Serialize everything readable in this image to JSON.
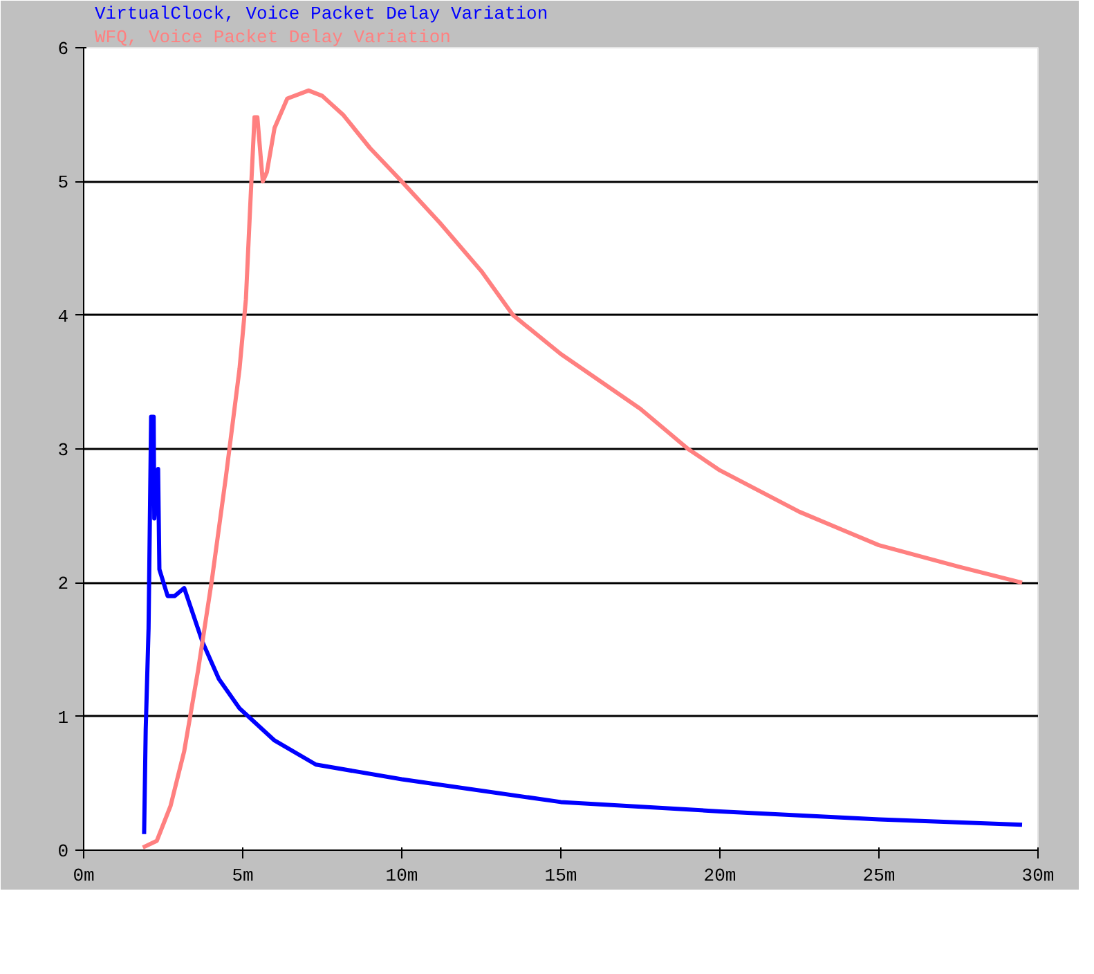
{
  "chart_data": {
    "type": "line",
    "series": [
      {
        "name": "VirtualClock, Voice Packet Delay Variation",
        "color": "#0000ff",
        "x": [
          1.9,
          1.95,
          2.04,
          2.08,
          2.12,
          2.2,
          2.22,
          2.34,
          2.38,
          2.64,
          2.86,
          3.16,
          3.73,
          4.25,
          4.9,
          6.0,
          7.3,
          10,
          15,
          20,
          25,
          29.5
        ],
        "values": [
          0.12,
          0.9,
          1.66,
          2.45,
          3.24,
          3.24,
          2.48,
          2.85,
          2.1,
          1.9,
          1.9,
          1.96,
          1.56,
          1.28,
          1.06,
          0.82,
          0.64,
          0.53,
          0.36,
          0.29,
          0.23,
          0.19
        ]
      },
      {
        "name": "WFQ, Voice Packet Delay Variation",
        "color": "#ff8080",
        "x": [
          1.86,
          2.3,
          2.73,
          3.16,
          3.6,
          4.03,
          4.47,
          4.9,
          5.1,
          5.24,
          5.37,
          5.46,
          5.63,
          5.76,
          6.0,
          6.4,
          7.07,
          7.5,
          8.15,
          9.0,
          10,
          11.2,
          12.5,
          13.5,
          15,
          17.5,
          19,
          20,
          22.5,
          25,
          27.5,
          29.5
        ],
        "values": [
          0.02,
          0.07,
          0.33,
          0.74,
          1.35,
          2.02,
          2.79,
          3.6,
          4.12,
          4.84,
          5.48,
          5.48,
          5.0,
          5.07,
          5.4,
          5.62,
          5.68,
          5.64,
          5.5,
          5.25,
          5.0,
          4.69,
          4.33,
          4.0,
          3.71,
          3.3,
          3.0,
          2.84,
          2.53,
          2.28,
          2.12,
          2.0
        ]
      }
    ],
    "xlim": [
      0,
      30
    ],
    "ylim": [
      0,
      6
    ],
    "xticks": [
      {
        "value": 0,
        "label": "0m"
      },
      {
        "value": 5,
        "label": "5m"
      },
      {
        "value": 10,
        "label": "10m"
      },
      {
        "value": 15,
        "label": "15m"
      },
      {
        "value": 20,
        "label": "20m"
      },
      {
        "value": 25,
        "label": "25m"
      },
      {
        "value": 30,
        "label": "30m"
      }
    ],
    "yticks": [
      0,
      1,
      2,
      3,
      4,
      5,
      6
    ],
    "grid": "y",
    "marker": "none",
    "line_style": "solid"
  }
}
